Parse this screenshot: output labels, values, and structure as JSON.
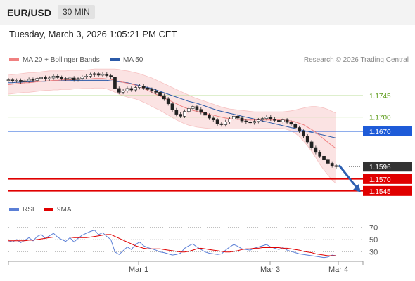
{
  "header": {
    "pair": "EUR/USD",
    "timeframe": "30 MIN",
    "timestamp": "Tuesday, March 3, 2026 1:05:21 PM CET"
  },
  "legend": {
    "ma20": "MA 20 + Bollinger Bands",
    "ma50": "MA 50",
    "ma20_color": "#f08080",
    "ma50_color": "#2b5aa8",
    "credit": "Research © 2026 Trading Central"
  },
  "rsi_legend": {
    "rsi": "RSI",
    "ma9": "9MA",
    "rsi_color": "#5b7fd6",
    "ma9_color": "#e00000"
  },
  "chart_data": [
    {
      "type": "line",
      "title": "EUR/USD 30 MIN",
      "ylim": [
        1.153,
        1.181
      ],
      "x_ticks": [
        "Mar 1",
        "Mar 3",
        "Mar 4"
      ],
      "levels": [
        {
          "value": 1.1745,
          "label": "1.1745",
          "kind": "resistance",
          "color": "#7dbb2f"
        },
        {
          "value": 1.17,
          "label": "1.1700",
          "kind": "resistance",
          "color": "#7dbb2f"
        },
        {
          "value": 1.167,
          "label": "1.1670",
          "kind": "pivot",
          "color": "#1e5bd8"
        },
        {
          "value": 1.1596,
          "label": "1.1596",
          "kind": "last-price",
          "color": "#333333"
        },
        {
          "value": 1.157,
          "label": "1.1570",
          "kind": "support",
          "color": "#e00000"
        },
        {
          "value": 1.1545,
          "label": "1.1545",
          "kind": "support",
          "color": "#e00000"
        }
      ],
      "close": [
        1.1778,
        1.1776,
        1.1777,
        1.1774,
        1.1776,
        1.1779,
        1.1777,
        1.1781,
        1.1783,
        1.178,
        1.1782,
        1.1786,
        1.1783,
        1.1781,
        1.1779,
        1.1782,
        1.1778,
        1.1781,
        1.1784,
        1.1786,
        1.1789,
        1.1791,
        1.1788,
        1.179,
        1.1787,
        1.1784,
        1.176,
        1.1752,
        1.1755,
        1.176,
        1.1757,
        1.1762,
        1.1765,
        1.1761,
        1.1758,
        1.1755,
        1.1752,
        1.1745,
        1.1738,
        1.1728,
        1.1715,
        1.1706,
        1.1702,
        1.1712,
        1.1718,
        1.1722,
        1.1716,
        1.171,
        1.1704,
        1.1698,
        1.1694,
        1.1686,
        1.1684,
        1.169,
        1.1696,
        1.1702,
        1.1698,
        1.1692,
        1.169,
        1.1688,
        1.1691,
        1.1694,
        1.1697,
        1.17,
        1.1696,
        1.1693,
        1.169,
        1.1694,
        1.1689,
        1.1685,
        1.1678,
        1.167,
        1.166,
        1.1648,
        1.1636,
        1.1626,
        1.1618,
        1.161,
        1.1603,
        1.1598,
        1.1596
      ],
      "ma20": [
        1.1768,
        1.1769,
        1.177,
        1.1771,
        1.1772,
        1.1772,
        1.1773,
        1.1774,
        1.1775,
        1.1776,
        1.1776,
        1.1777,
        1.1777,
        1.1778,
        1.1778,
        1.1778,
        1.1779,
        1.1779,
        1.178,
        1.178,
        1.178,
        1.1781,
        1.1781,
        1.1781,
        1.178,
        1.1779,
        1.1777,
        1.1775,
        1.1773,
        1.1771,
        1.1769,
        1.1767,
        1.1764,
        1.176,
        1.1756,
        1.1752,
        1.1748,
        1.1744,
        1.174,
        1.1736,
        1.1732,
        1.1728,
        1.1724,
        1.172,
        1.1717,
        1.1714,
        1.1712,
        1.171,
        1.1708,
        1.1706,
        1.1704,
        1.1702,
        1.17,
        1.1698,
        1.1697,
        1.1696,
        1.1695,
        1.1695,
        1.1694,
        1.1694,
        1.1694,
        1.1694,
        1.1694,
        1.1694,
        1.1694,
        1.1694,
        1.1694,
        1.1694,
        1.1693,
        1.1692,
        1.169,
        1.1687,
        1.1684,
        1.1679,
        1.1674,
        1.1668,
        1.1661,
        1.1654,
        1.1647,
        1.164,
        1.1634
      ],
      "ma50": [
        1.1772,
        1.1772,
        1.1773,
        1.1773,
        1.1774,
        1.1774,
        1.1774,
        1.1775,
        1.1775,
        1.1775,
        1.1776,
        1.1776,
        1.1776,
        1.1776,
        1.1777,
        1.1777,
        1.1777,
        1.1777,
        1.1777,
        1.1777,
        1.1777,
        1.1777,
        1.1777,
        1.1777,
        1.1777,
        1.1776,
        1.1775,
        1.1774,
        1.1773,
        1.1772,
        1.177,
        1.1768,
        1.1766,
        1.1764,
        1.1762,
        1.176,
        1.1757,
        1.1754,
        1.1751,
        1.1748,
        1.1745,
        1.1742,
        1.1739,
        1.1736,
        1.1733,
        1.1731,
        1.1729,
        1.1726,
        1.1723,
        1.172,
        1.1717,
        1.1714,
        1.1712,
        1.171,
        1.1708,
        1.1706,
        1.1704,
        1.1702,
        1.17,
        1.1698,
        1.1696,
        1.1694,
        1.1692,
        1.169,
        1.1688,
        1.1686,
        1.1684,
        1.1682,
        1.168,
        1.1678,
        1.1676,
        1.1674,
        1.1672,
        1.167,
        1.1668,
        1.1666,
        1.1664,
        1.1662,
        1.166,
        1.1658,
        1.1656
      ],
      "bb_upper": [
        1.1788,
        1.1789,
        1.179,
        1.1791,
        1.1792,
        1.1793,
        1.1793,
        1.1794,
        1.1795,
        1.1796,
        1.1797,
        1.1797,
        1.1797,
        1.1797,
        1.1797,
        1.1798,
        1.1798,
        1.1798,
        1.1798,
        1.1799,
        1.18,
        1.1801,
        1.1801,
        1.1801,
        1.1801,
        1.1801,
        1.1801,
        1.18,
        1.1798,
        1.1797,
        1.1795,
        1.1793,
        1.1791,
        1.1788,
        1.1785,
        1.1782,
        1.1778,
        1.1774,
        1.177,
        1.1766,
        1.1762,
        1.1758,
        1.1754,
        1.175,
        1.1746,
        1.1742,
        1.1739,
        1.1736,
        1.1733,
        1.173,
        1.1727,
        1.1724,
        1.1721,
        1.1719,
        1.1717,
        1.1716,
        1.1715,
        1.1714,
        1.1713,
        1.1712,
        1.1711,
        1.1711,
        1.1711,
        1.1711,
        1.1711,
        1.1711,
        1.1711,
        1.1711,
        1.1712,
        1.1713,
        1.1715,
        1.1717,
        1.1719,
        1.1721,
        1.1722,
        1.1722,
        1.1721,
        1.1719,
        1.1716,
        1.1712,
        1.1708
      ],
      "bb_lower": [
        1.1748,
        1.1749,
        1.175,
        1.1751,
        1.1752,
        1.1752,
        1.1753,
        1.1754,
        1.1755,
        1.1756,
        1.1756,
        1.1757,
        1.1757,
        1.1758,
        1.1758,
        1.1758,
        1.1759,
        1.1759,
        1.176,
        1.176,
        1.176,
        1.1761,
        1.1761,
        1.1761,
        1.1759,
        1.1756,
        1.1752,
        1.1748,
        1.1745,
        1.1742,
        1.174,
        1.1738,
        1.1735,
        1.1731,
        1.1727,
        1.1722,
        1.1718,
        1.1714,
        1.1709,
        1.1704,
        1.1699,
        1.1694,
        1.169,
        1.1686,
        1.1683,
        1.1681,
        1.1679,
        1.1678,
        1.1677,
        1.1676,
        1.1675,
        1.1675,
        1.1675,
        1.1675,
        1.1675,
        1.1675,
        1.1675,
        1.1675,
        1.1675,
        1.1675,
        1.1676,
        1.1676,
        1.1676,
        1.1676,
        1.1676,
        1.1676,
        1.1676,
        1.1676,
        1.1674,
        1.1671,
        1.1666,
        1.1659,
        1.165,
        1.164,
        1.1628,
        1.1615,
        1.1601,
        1.1589,
        1.1578,
        1.1568,
        1.156
      ]
    },
    {
      "type": "line",
      "title": "RSI",
      "ylim": [
        15,
        85
      ],
      "y_ticks": [
        70,
        50,
        30
      ],
      "rsi": [
        48,
        46,
        50,
        45,
        49,
        53,
        48,
        55,
        58,
        52,
        56,
        60,
        54,
        50,
        47,
        53,
        46,
        52,
        57,
        60,
        63,
        65,
        58,
        61,
        55,
        50,
        30,
        26,
        32,
        38,
        34,
        42,
        46,
        40,
        37,
        35,
        33,
        30,
        29,
        27,
        25,
        26,
        28,
        36,
        40,
        43,
        38,
        34,
        30,
        28,
        27,
        26,
        27,
        33,
        38,
        42,
        39,
        35,
        34,
        33,
        36,
        38,
        40,
        42,
        38,
        36,
        34,
        37,
        33,
        31,
        29,
        27,
        26,
        25,
        24,
        23,
        22,
        21,
        22,
        25,
        24
      ],
      "ma9": [
        48,
        48,
        48,
        48,
        48,
        49,
        49,
        50,
        51,
        52,
        53,
        54,
        54,
        54,
        54,
        54,
        53,
        53,
        53,
        53,
        54,
        55,
        56,
        57,
        58,
        58,
        55,
        52,
        49,
        46,
        43,
        40,
        38,
        36,
        35,
        35,
        35,
        35,
        34,
        33,
        32,
        31,
        30,
        30,
        31,
        33,
        35,
        36,
        35,
        34,
        33,
        32,
        31,
        30,
        30,
        31,
        32,
        34,
        35,
        35,
        36,
        36,
        37,
        37,
        37,
        37,
        37,
        36,
        36,
        35,
        34,
        33,
        31,
        30,
        29,
        27,
        26,
        25,
        24,
        24,
        24
      ]
    }
  ]
}
